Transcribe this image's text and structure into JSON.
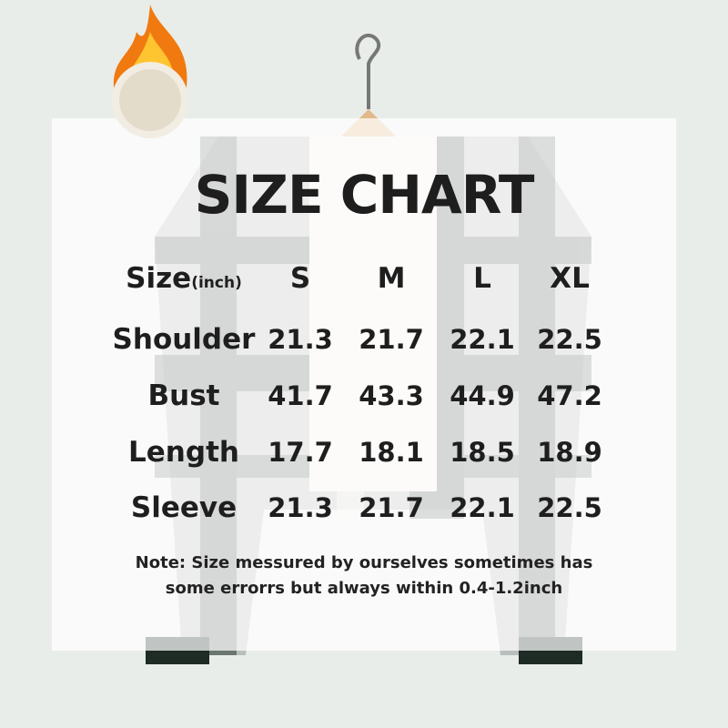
{
  "title": "SIZE CHART",
  "header": {
    "label": "Size",
    "unit": "(inch)",
    "sizes": [
      "S",
      "M",
      "L",
      "XL"
    ]
  },
  "rows": [
    {
      "label": "Shoulder",
      "values": [
        "21.3",
        "21.7",
        "22.1",
        "22.5"
      ]
    },
    {
      "label": "Bust",
      "values": [
        "41.7",
        "43.3",
        "44.9",
        "47.2"
      ]
    },
    {
      "label": "Length",
      "values": [
        "17.7",
        "18.1",
        "18.5",
        "18.9"
      ]
    },
    {
      "label": "Sleeve",
      "values": [
        "21.3",
        "21.7",
        "22.1",
        "22.5"
      ]
    }
  ],
  "note": {
    "line1": "Note:  Size messured by ourselves sometimes has",
    "line2": "some errorrs but always within 0.4-1.2inch"
  },
  "icons": {
    "badge": "fleece-fire-icon",
    "hanger": "hanger-icon"
  },
  "colors": {
    "text": "#1e1e1e",
    "background": "#e9edea",
    "flame": "#f07a10"
  }
}
